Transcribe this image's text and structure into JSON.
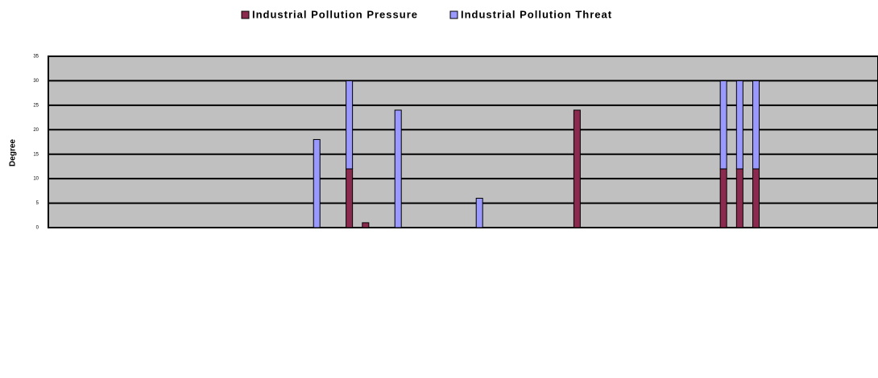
{
  "chart_data": {
    "type": "stacked_bar",
    "y_label": "Degree",
    "categories": [
      null,
      null,
      null,
      null,
      null,
      null,
      null,
      null,
      null,
      null,
      null,
      null,
      null,
      null,
      null,
      null,
      null,
      null,
      null,
      null,
      null,
      null,
      null,
      null,
      null,
      null,
      null,
      null,
      null,
      null,
      null,
      null,
      null,
      null,
      null,
      null,
      null,
      null,
      null,
      null,
      null,
      null,
      null,
      null,
      null,
      null,
      null,
      null,
      null,
      null,
      null
    ],
    "series": [
      {
        "name": "Industrial Pollution Pressure",
        "color": "#8b2a4e",
        "values": [
          0,
          0,
          0,
          0,
          0,
          0,
          0,
          0,
          0,
          0,
          0,
          0,
          0,
          0,
          0,
          0,
          0,
          0,
          12,
          1,
          0,
          0,
          0,
          0,
          0,
          0,
          0,
          0,
          0,
          0,
          0,
          0,
          24,
          0,
          0,
          0,
          0,
          0,
          0,
          0,
          0,
          12,
          12,
          12,
          0,
          0,
          0,
          0,
          0,
          0,
          0
        ]
      },
      {
        "name": "Industrial Pollution Threat",
        "color": "#9999ff",
        "values": [
          0,
          0,
          0,
          0,
          0,
          0,
          0,
          0,
          0,
          0,
          0,
          0,
          0,
          0,
          0,
          0,
          18,
          0,
          18,
          0,
          0,
          24,
          0,
          0,
          0,
          0,
          6,
          0,
          0,
          0,
          0,
          0,
          0,
          0,
          0,
          0,
          0,
          0,
          0,
          0,
          0,
          18,
          18,
          18,
          0,
          0,
          0,
          0,
          0,
          0,
          0
        ]
      }
    ],
    "ylim": [
      0,
      35
    ],
    "yticks": [
      0,
      5,
      10,
      15,
      20,
      25,
      30,
      35
    ],
    "grid": true,
    "legend": "top"
  }
}
